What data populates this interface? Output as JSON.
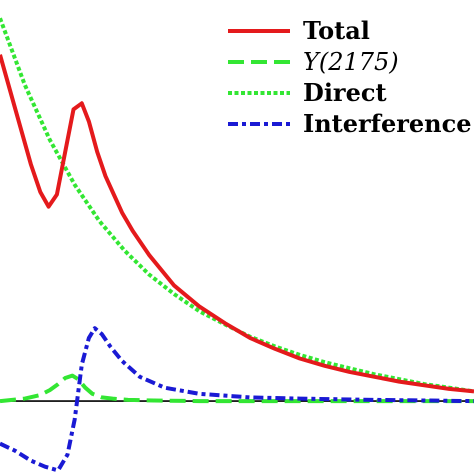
{
  "chart_data": {
    "type": "line",
    "title": "",
    "xlabel": "",
    "ylabel": "",
    "xlim": [
      2.0,
      2.4
    ],
    "ylim": [
      -0.6,
      3.3
    ],
    "zero_line": true,
    "legend": {
      "placement": "top-right"
    },
    "series": [
      {
        "name": "Total",
        "color": "#e41a1c",
        "dash": "solid",
        "x": [
          2.0,
          2.013,
          2.026,
          2.034,
          2.041,
          2.048,
          2.055,
          2.062,
          2.069,
          2.075,
          2.082,
          2.089,
          2.096,
          2.103,
          2.112,
          2.126,
          2.147,
          2.168,
          2.19,
          2.211,
          2.232,
          2.253,
          2.274,
          2.295,
          2.316,
          2.337,
          2.358,
          2.379,
          2.4
        ],
        "y": [
          2.85,
          2.4,
          1.95,
          1.72,
          1.6,
          1.7,
          2.05,
          2.4,
          2.45,
          2.3,
          2.05,
          1.85,
          1.7,
          1.55,
          1.4,
          1.2,
          0.95,
          0.78,
          0.64,
          0.52,
          0.43,
          0.35,
          0.29,
          0.24,
          0.2,
          0.16,
          0.13,
          0.1,
          0.08
        ]
      },
      {
        "name": "Y(2175)",
        "color": "#33e633",
        "dash": "dashed",
        "x": [
          2.0,
          2.021,
          2.034,
          2.042,
          2.049,
          2.055,
          2.061,
          2.066,
          2.072,
          2.078,
          2.086,
          2.095,
          2.108,
          2.13,
          2.168,
          2.211,
          2.253,
          2.316,
          2.4
        ],
        "y": [
          0.0,
          0.02,
          0.05,
          0.09,
          0.14,
          0.19,
          0.21,
          0.18,
          0.11,
          0.06,
          0.03,
          0.02,
          0.01,
          0.005,
          0.0,
          0.0,
          0.0,
          0.0,
          0.0
        ]
      },
      {
        "name": "Direct",
        "color": "#33e633",
        "dash": "dotted",
        "x": [
          2.0,
          2.021,
          2.042,
          2.063,
          2.084,
          2.105,
          2.126,
          2.147,
          2.168,
          2.19,
          2.211,
          2.232,
          2.253,
          2.274,
          2.295,
          2.316,
          2.337,
          2.358,
          2.379,
          2.4
        ],
        "y": [
          3.15,
          2.6,
          2.15,
          1.78,
          1.48,
          1.24,
          1.04,
          0.88,
          0.74,
          0.63,
          0.53,
          0.45,
          0.38,
          0.32,
          0.27,
          0.22,
          0.18,
          0.14,
          0.11,
          0.08
        ]
      },
      {
        "name": "Interference",
        "color": "#1a1ad4",
        "dash": "dashdot",
        "x": [
          2.0,
          2.013,
          2.026,
          2.038,
          2.049,
          2.057,
          2.063,
          2.069,
          2.075,
          2.08,
          2.086,
          2.093,
          2.103,
          2.118,
          2.139,
          2.168,
          2.211,
          2.253,
          2.316,
          2.4
        ],
        "y": [
          -0.35,
          -0.41,
          -0.49,
          -0.54,
          -0.57,
          -0.44,
          -0.15,
          0.3,
          0.52,
          0.6,
          0.55,
          0.45,
          0.33,
          0.2,
          0.11,
          0.06,
          0.03,
          0.02,
          0.01,
          0.0
        ]
      }
    ]
  }
}
